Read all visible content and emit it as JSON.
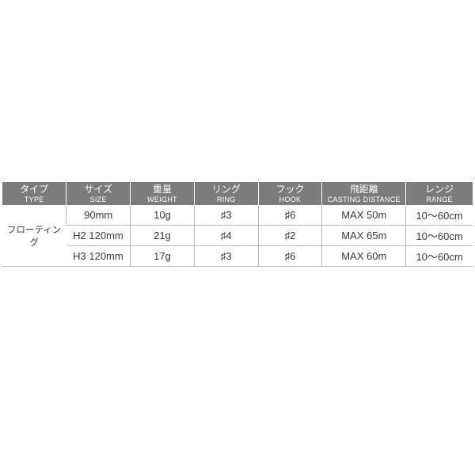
{
  "table": {
    "header_bg": "#7c7c7c",
    "header_fg": "#ffffff",
    "cell_fg": "#3a3a3a",
    "border_color": "#b8b8b8",
    "jp_fontsize": 12,
    "en_fontsize": 9,
    "cell_fontsize": 13,
    "columns": [
      {
        "jp": "タイプ",
        "en": "TYPE",
        "width_pct": 13.6
      },
      {
        "jp": "サイズ",
        "en": "SIZE",
        "width_pct": 13.6
      },
      {
        "jp": "重量",
        "en": "WEIGHT",
        "width_pct": 13.6
      },
      {
        "jp": "リング",
        "en": "RING",
        "width_pct": 13.6
      },
      {
        "jp": "フック",
        "en": "HOOK",
        "width_pct": 13.6
      },
      {
        "jp": "飛距離",
        "en": "CASTING DISTANCE",
        "width_pct": 17.8
      },
      {
        "jp": "レンジ",
        "en": "RANGE",
        "width_pct": 14.2
      }
    ],
    "type_label": "フローティング",
    "rows": [
      {
        "size": "90mm",
        "weight": "10g",
        "ring": "♯3",
        "hook": "♯6",
        "cast": "MAX 50m",
        "range": "10～60cm"
      },
      {
        "size": "H2 120mm",
        "weight": "21g",
        "ring": "♯4",
        "hook": "♯2",
        "cast": "MAX 65m",
        "range": "10～60cm"
      },
      {
        "size": "H3 120mm",
        "weight": "17g",
        "ring": "♯3",
        "hook": "♯6",
        "cast": "MAX 60m",
        "range": "10～60cm"
      }
    ]
  }
}
